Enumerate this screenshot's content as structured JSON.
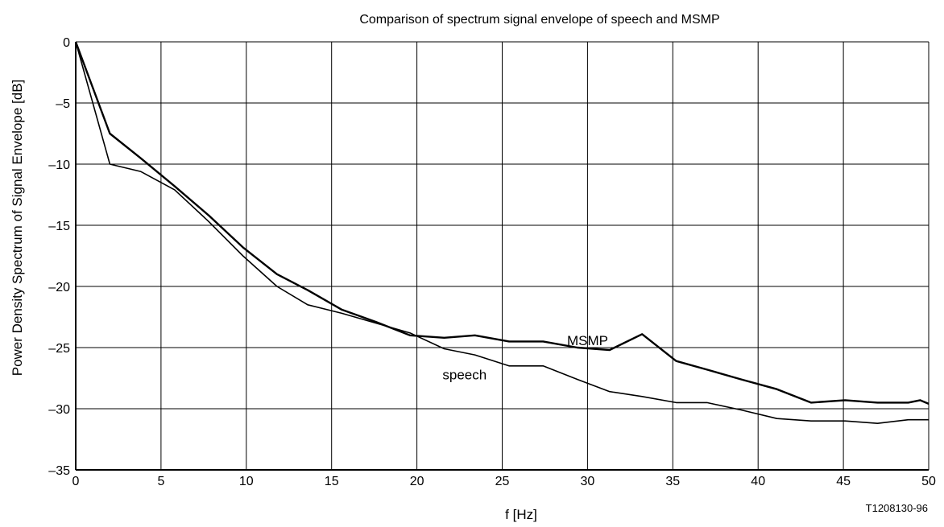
{
  "chart_data": {
    "type": "line",
    "title": "Comparison  of spectrum signal envelope of speech and MSMP",
    "xlabel": "f [Hz]",
    "ylabel": "Power Density Spectrum of Signal Envelope [dB]",
    "xlim": [
      0,
      50
    ],
    "ylim": [
      -35,
      0
    ],
    "xticks": [
      0,
      5,
      10,
      15,
      20,
      25,
      30,
      35,
      40,
      45,
      50
    ],
    "yticks": [
      0,
      -5,
      -10,
      -15,
      -20,
      -25,
      -30,
      -35
    ],
    "xtick_labels": [
      "0",
      "5",
      "10",
      "15",
      "20",
      "25",
      "30",
      "35",
      "40",
      "45",
      "50"
    ],
    "ytick_labels": [
      "0",
      "–5",
      "–10",
      "–15",
      "–20",
      "–25",
      "–30",
      "–35"
    ],
    "grid": true,
    "legend": "none",
    "series": [
      {
        "name": "MSMP",
        "x": [
          0,
          2,
          3.8,
          5.8,
          7.8,
          9.8,
          11.8,
          13.6,
          15.6,
          17.6,
          19.6,
          21.6,
          23.4,
          25.4,
          27.4,
          29.4,
          31.3,
          33.2,
          35.2,
          37,
          39,
          41.1,
          43.1,
          45.1,
          47,
          48.8,
          49.5,
          50
        ],
        "y": [
          0,
          -7.5,
          -9.5,
          -11.8,
          -14.2,
          -16.8,
          -19,
          -20.3,
          -21.9,
          -22.9,
          -24,
          -24.2,
          -24,
          -24.5,
          -24.5,
          -25,
          -25.2,
          -23.9,
          -26.1,
          -26.8,
          -27.6,
          -28.4,
          -29.5,
          -29.3,
          -29.5,
          -29.5,
          -29.3,
          -29.6
        ]
      },
      {
        "name": "speech",
        "x": [
          0,
          2,
          3.8,
          5.8,
          7.8,
          9.8,
          11.8,
          13.6,
          15.6,
          17.6,
          19.6,
          21.6,
          23.4,
          25.4,
          27.4,
          29.4,
          31.3,
          33.2,
          35.2,
          37,
          39,
          41.1,
          43.1,
          45.1,
          47,
          48.8,
          50
        ],
        "y": [
          0,
          -10,
          -10.6,
          -12.1,
          -14.7,
          -17.5,
          -20,
          -21.5,
          -22.2,
          -23,
          -23.8,
          -25.1,
          -25.6,
          -26.5,
          -26.5,
          -27.6,
          -28.6,
          -29,
          -29.5,
          -29.5,
          -30.1,
          -30.8,
          -31,
          -31,
          -31.2,
          -30.9,
          -30.9
        ]
      }
    ],
    "annotations": [
      {
        "text": "MSMP",
        "x": 28.8,
        "y": -24.8
      },
      {
        "text": "speech",
        "x": 21.5,
        "y": -27.6
      }
    ],
    "figure_id": "T1208130-96"
  }
}
